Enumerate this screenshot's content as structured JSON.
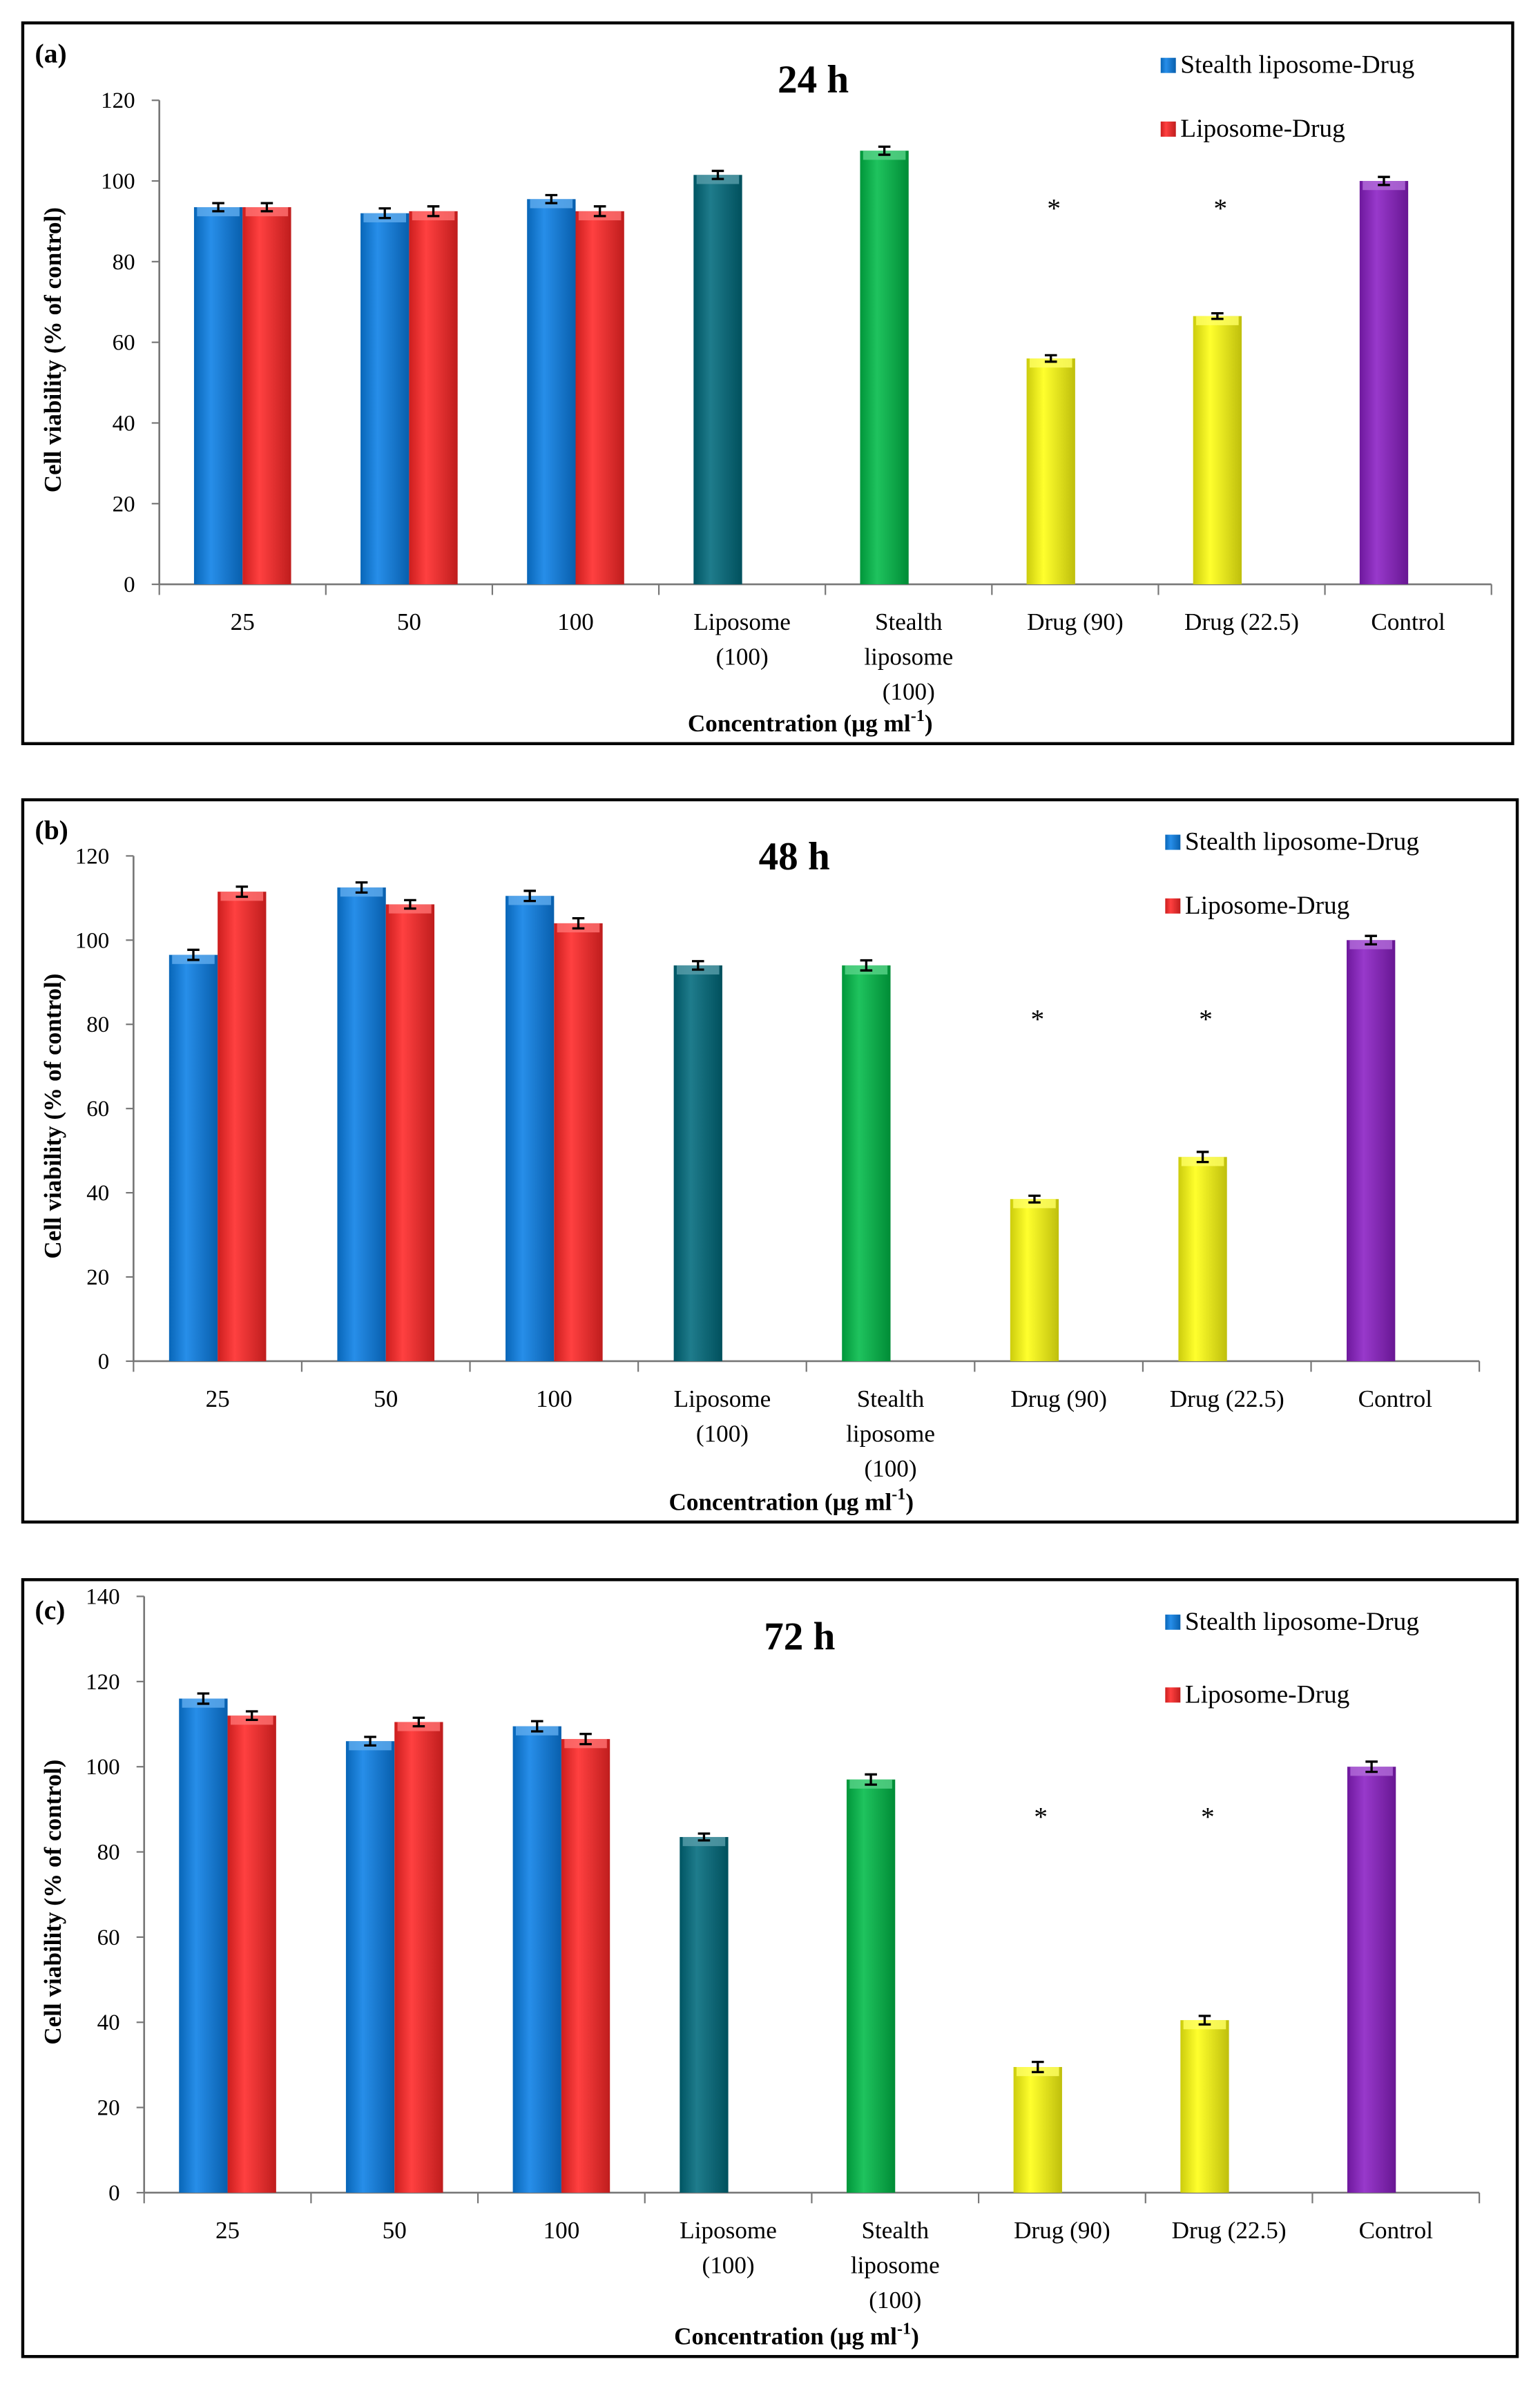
{
  "colors": {
    "stealth_liposome_drug": "#0a7fe6",
    "liposome_drug": "#ff2626",
    "liposome": "#006a7c",
    "stealth_liposome": "#00bb48",
    "drug": "#ffff10",
    "control": "#8a1ec4"
  },
  "chart_data": [
    {
      "type": "bar",
      "panel_label": "(a)",
      "title": "24 h",
      "xlabel": "Concentration  (µg ml",
      "xlabel_sup": "-1",
      "xlabel_end": ")",
      "ylabel": "Cell viability  (% of control)",
      "ylim": [
        0,
        120
      ],
      "yticks": [
        0,
        20,
        40,
        60,
        80,
        100,
        120
      ],
      "categories": [
        [
          "25"
        ],
        [
          "50"
        ],
        [
          "100"
        ],
        [
          "Liposome",
          "(100)"
        ],
        [
          "Stealth",
          "liposome",
          "(100)"
        ],
        [
          "Drug (90)"
        ],
        [
          "Drug (22.5)"
        ],
        [
          "Control"
        ]
      ],
      "legend": [
        "Stealth liposome-Drug",
        "Liposome-Drug"
      ],
      "legend_position": "top-right",
      "series": [
        {
          "name": "Stealth liposome-Drug",
          "values": [
            93.5,
            92,
            95.5,
            101.5,
            107.5,
            56,
            66.5,
            100
          ],
          "errors": [
            1,
            1.2,
            1,
            1,
            1,
            0.8,
            0.7,
            1
          ],
          "colors": [
            "stealth_liposome_drug",
            "stealth_liposome_drug",
            "stealth_liposome_drug",
            "liposome",
            "stealth_liposome",
            "drug",
            "drug",
            "control"
          ]
        },
        {
          "name": "Liposome-Drug",
          "values": [
            93.5,
            92.5,
            92.5,
            null,
            null,
            null,
            null,
            null
          ],
          "errors": [
            1,
            1.2,
            1.2,
            null,
            null,
            null,
            null,
            null
          ],
          "colors": [
            "liposome_drug",
            "liposome_drug",
            "liposome_drug"
          ]
        }
      ],
      "annotations": [
        {
          "category": 5,
          "text": "*",
          "y": 94
        },
        {
          "category": 6,
          "text": "*",
          "y": 94
        }
      ]
    },
    {
      "type": "bar",
      "panel_label": "(b)",
      "title": "48 h",
      "xlabel": "Concentration  (µg ml",
      "xlabel_sup": "-1",
      "xlabel_end": ")",
      "ylabel": "Cell viability  (% of control)",
      "ylim": [
        0,
        120
      ],
      "yticks": [
        0,
        20,
        40,
        60,
        80,
        100,
        120
      ],
      "categories": [
        [
          "25"
        ],
        [
          "50"
        ],
        [
          "100"
        ],
        [
          "Liposome",
          "(100)"
        ],
        [
          "Stealth",
          "liposome",
          "(100)"
        ],
        [
          "Drug (90)"
        ],
        [
          "Drug (22.5)"
        ],
        [
          "Control"
        ]
      ],
      "legend": [
        "Stealth liposome-Drug",
        "Liposome-Drug"
      ],
      "legend_position": "top-right",
      "series": [
        {
          "name": "Stealth liposome-Drug",
          "values": [
            96.5,
            112.5,
            110.5,
            94,
            94,
            38.5,
            48.5,
            100
          ],
          "errors": [
            1.2,
            1.2,
            1.2,
            1,
            1.2,
            0.8,
            1.2,
            1
          ],
          "colors": [
            "stealth_liposome_drug",
            "stealth_liposome_drug",
            "stealth_liposome_drug",
            "liposome",
            "stealth_liposome",
            "drug",
            "drug",
            "control"
          ]
        },
        {
          "name": "Liposome-Drug",
          "values": [
            111.5,
            108.5,
            104,
            null,
            null,
            null,
            null,
            null
          ],
          "errors": [
            1.2,
            1,
            1.2,
            null,
            null,
            null,
            null,
            null
          ],
          "colors": [
            "liposome_drug",
            "liposome_drug",
            "liposome_drug"
          ]
        }
      ],
      "annotations": [
        {
          "category": 5,
          "text": "*",
          "y": 82
        },
        {
          "category": 6,
          "text": "*",
          "y": 82
        }
      ]
    },
    {
      "type": "bar",
      "panel_label": "(c)",
      "title": "72 h",
      "xlabel": "Concentration  (µg ml",
      "xlabel_sup": "-1",
      "xlabel_end": ")",
      "ylabel": "Cell viability  (% of control)",
      "ylim": [
        0,
        140
      ],
      "yticks": [
        0,
        20,
        40,
        60,
        80,
        100,
        120,
        140
      ],
      "categories": [
        [
          "25"
        ],
        [
          "50"
        ],
        [
          "100"
        ],
        [
          "Liposome",
          "(100)"
        ],
        [
          "Stealth",
          "liposome",
          "(100)"
        ],
        [
          "Drug (90)"
        ],
        [
          "Drug (22.5)"
        ],
        [
          "Control"
        ]
      ],
      "legend": [
        "Stealth liposome-Drug",
        "Liposome-Drug"
      ],
      "legend_position": "top-right",
      "series": [
        {
          "name": "Stealth liposome-Drug",
          "values": [
            116,
            106,
            109.5,
            83.5,
            97,
            29.5,
            40.5,
            100
          ],
          "errors": [
            1.2,
            1,
            1.2,
            0.8,
            1.2,
            1.2,
            1,
            1.2
          ],
          "colors": [
            "stealth_liposome_drug",
            "stealth_liposome_drug",
            "stealth_liposome_drug",
            "liposome",
            "stealth_liposome",
            "drug",
            "drug",
            "control"
          ]
        },
        {
          "name": "Liposome-Drug",
          "values": [
            112,
            110.5,
            106.5,
            null,
            null,
            null,
            null,
            null
          ],
          "errors": [
            1,
            1,
            1.2,
            null,
            null,
            null,
            null,
            null
          ],
          "colors": [
            "liposome_drug",
            "liposome_drug",
            "liposome_drug"
          ]
        }
      ],
      "annotations": [
        {
          "category": 5,
          "text": "*",
          "y": 89
        },
        {
          "category": 6,
          "text": "*",
          "y": 89
        }
      ]
    }
  ]
}
